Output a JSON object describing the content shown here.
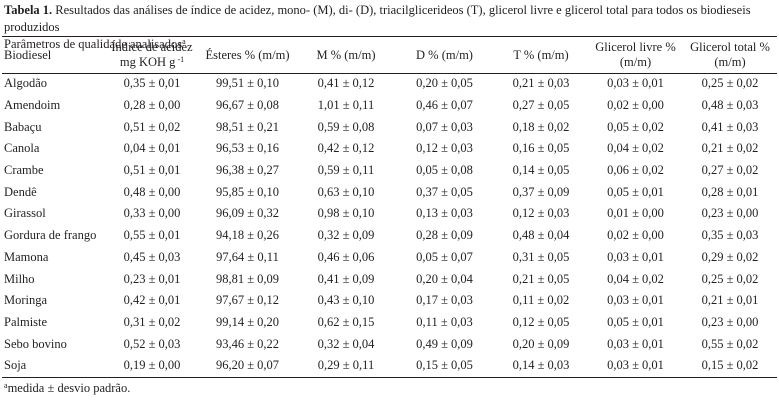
{
  "caption": {
    "label": "Tabela 1.",
    "text": "Resultados das análises de índice de acidez, mono- (M), di- (D), triacilglicerideos (T), glicerol livre e glicerol total para todos os biodieseis produzidos",
    "subtitle": "Parâmetros de qualidade analisados",
    "subtitle_mark": "a"
  },
  "table": {
    "headers": {
      "biodiesel": "Biodiesel",
      "acidez_line1": "Índice de acidez",
      "acidez_line2": "mg KOH g",
      "acidez_exp": "-1",
      "esteres": "Ésteres % (m/m)",
      "m": "M % (m/m)",
      "d": "D % (m/m)",
      "t": "T % (m/m)",
      "glicerol_livre_line1": "Glicerol livre %",
      "glicerol_livre_line2": "(m/m)",
      "glicerol_total": "Glicerol total %",
      "glicerol_total_line2": "(m/m)"
    },
    "rows": [
      [
        "Algodão",
        "0,35 ± 0,01",
        "99,51 ± 0,10",
        "0,41 ± 0,12",
        "0,20 ± 0,05",
        "0,21 ± 0,03",
        "0,03 ± 0,01",
        "0,25 ± 0,02"
      ],
      [
        "Amendoim",
        "0,28 ± 0,00",
        "96,67 ± 0,08",
        "1,01 ± 0,11",
        "0,46 ± 0,07",
        "0,27 ± 0,05",
        "0,02 ± 0,00",
        "0,48 ± 0,03"
      ],
      [
        "Babaçu",
        "0,51 ± 0,02",
        "98,51 ± 0,21",
        "0,59 ± 0,08",
        "0,07 ± 0,03",
        "0,18 ± 0,02",
        "0,05 ± 0,02",
        "0,41 ± 0,03"
      ],
      [
        "Canola",
        "0,04 ± 0,01",
        "96,53 ± 0,16",
        "0,42 ± 0,12",
        "0,12 ± 0,03",
        "0,16 ± 0,05",
        "0,04 ± 0,02",
        "0,21 ± 0,02"
      ],
      [
        "Crambe",
        "0,51 ± 0,01",
        "96,38 ± 0,27",
        "0,59 ± 0,11",
        "0,05 ± 0,08",
        "0,14 ± 0,05",
        "0,06 ± 0,02",
        "0,27 ± 0,02"
      ],
      [
        "Dendê",
        "0,48 ± 0,00",
        "95,85 ± 0,10",
        "0,63 ± 0,10",
        "0,37 ± 0,05",
        "0,37 ± 0,09",
        "0,05 ± 0,01",
        "0,28 ± 0,01"
      ],
      [
        "Girassol",
        "0,33 ± 0,00",
        "96,09 ± 0,32",
        "0,98 ± 0,10",
        "0,13 ± 0,03",
        "0,12 ± 0,03",
        "0,01 ± 0,00",
        "0,23 ± 0,00"
      ],
      [
        "Gordura de frango",
        "0,55 ± 0,01",
        "94,18 ± 0,26",
        "0,32 ± 0,09",
        "0,28 ± 0,09",
        "0,48 ± 0,04",
        "0,02 ± 0,00",
        "0,35 ± 0,03"
      ],
      [
        "Mamona",
        "0,45 ± 0,03",
        "97,64 ± 0,11",
        "0,46 ± 0,06",
        "0,05 ± 0,07",
        "0,31 ± 0,05",
        "0,03 ± 0,01",
        "0,29 ± 0,02"
      ],
      [
        "Milho",
        "0,23 ± 0,01",
        "98,81 ± 0,09",
        "0,41 ± 0,09",
        "0,20 ± 0,04",
        "0,21 ± 0,05",
        "0,04 ± 0,02",
        "0,25 ± 0,02"
      ],
      [
        "Moringa",
        "0,42 ± 0,01",
        "97,67 ± 0,12",
        "0,43 ± 0,10",
        "0,17 ± 0,03",
        "0,11 ± 0,02",
        "0,03 ± 0,01",
        "0,21 ± 0,01"
      ],
      [
        "Palmiste",
        "0,31 ± 0,02",
        "99,14 ± 0,20",
        "0,62 ± 0,15",
        "0,11 ± 0,03",
        "0,12 ± 0,05",
        "0,05 ± 0,01",
        "0,23 ± 0,00"
      ],
      [
        "Sebo bovino",
        "0,52 ± 0,03",
        "93,46 ± 0,22",
        "0,32 ± 0,04",
        "0,49 ± 0,09",
        "0,20 ± 0,09",
        "0,03 ± 0,01",
        "0,55 ± 0,02"
      ],
      [
        "Soja",
        "0,19 ± 0,00",
        "96,20 ± 0,07",
        "0,29 ± 0,11",
        "0,15 ± 0,05",
        "0,14 ± 0,03",
        "0,03 ± 0,01",
        "0,15 ± 0,02"
      ]
    ]
  },
  "footnote": {
    "mark": "a",
    "text": "medida ± desvio padrão."
  }
}
